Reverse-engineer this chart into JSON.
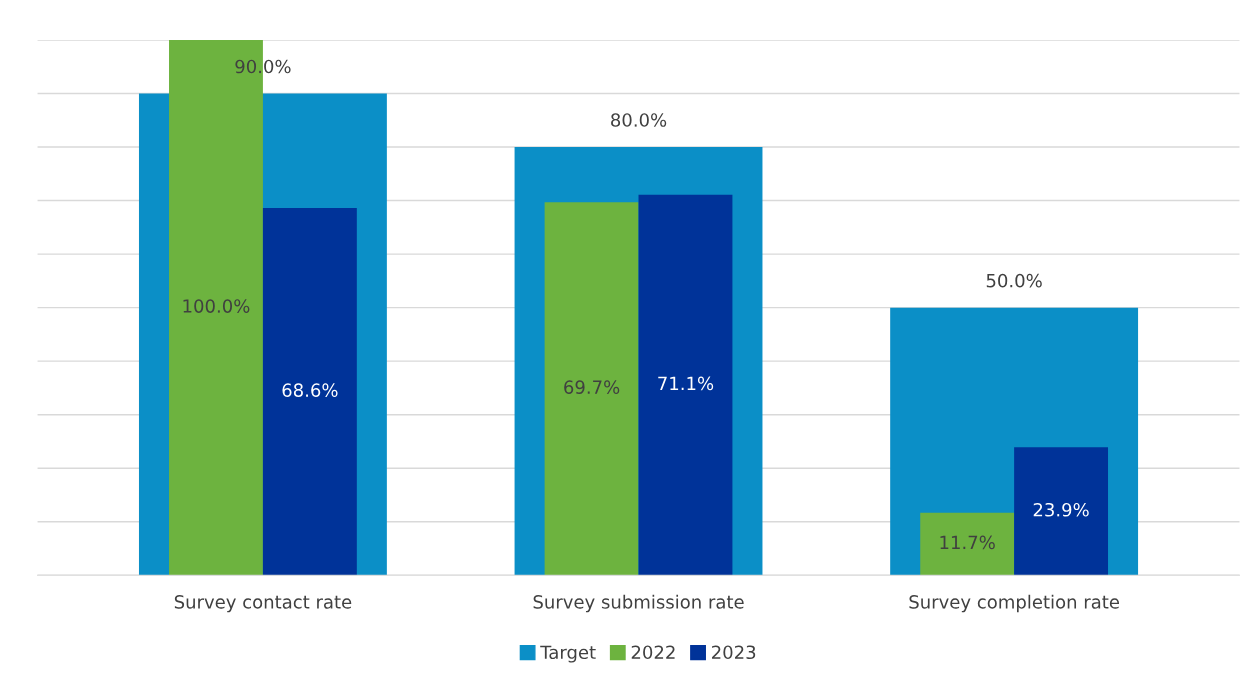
{
  "chart_data": {
    "type": "bar",
    "categories": [
      "Survey contact rate",
      "Survey submission rate",
      "Survey completion rate"
    ],
    "series": [
      {
        "name": "Target",
        "color": "#0b8fc7",
        "values": [
          90.0,
          80.0,
          50.0
        ],
        "value_labels": [
          "90.0%",
          "80.0%",
          "50.0%"
        ]
      },
      {
        "name": "2022",
        "color": "#6db33f",
        "values": [
          100.0,
          69.7,
          11.7
        ],
        "value_labels": [
          "100.0%",
          "69.7%",
          "11.7%"
        ]
      },
      {
        "name": "2023",
        "color": "#003399",
        "values": [
          68.6,
          71.1,
          23.9
        ],
        "value_labels": [
          "68.6%",
          "71.1%",
          "23.9%"
        ]
      }
    ],
    "ylim": [
      0,
      100
    ],
    "yticks": [
      {
        "value": 0,
        "label": null
      },
      {
        "value": 10,
        "label": null
      },
      {
        "value": 20,
        "label": null
      },
      {
        "value": 30,
        "label": null
      },
      {
        "value": 40,
        "label": null
      },
      {
        "value": 50,
        "label": null
      },
      {
        "value": 60,
        "label": null
      },
      {
        "value": 70,
        "label": null
      },
      {
        "value": 80,
        "label": null
      },
      {
        "value": 90,
        "label": null
      },
      {
        "value": 100,
        "label": null
      }
    ],
    "tick_labels": "x",
    "grid": "y",
    "legend": "bottom"
  }
}
